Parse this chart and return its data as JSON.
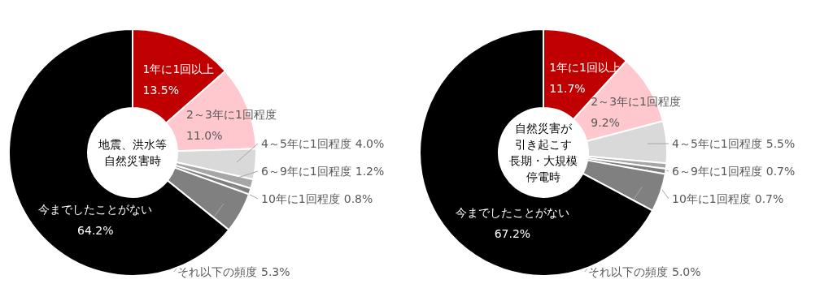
{
  "chart_data": [
    {
      "type": "donut",
      "annotations": [
        "地震、洪水等",
        "自然災害時"
      ],
      "categories": [
        "1年に1回以上",
        "2～3年に1回程度",
        "4～5年に1回程度",
        "6～9年に1回程度",
        "10年に1回程度",
        "それ以下の頻度",
        "今までしたことがない"
      ],
      "values": [
        13.5,
        11.0,
        4.0,
        1.2,
        0.8,
        5.3,
        64.2
      ],
      "colors": [
        "#c00000",
        "#ffc7ce",
        "#d9d9d9",
        "#a6a6a6",
        "#7f7f7f",
        "#808080",
        "#000000"
      ],
      "value_labels": [
        "13.5%",
        "11.0%",
        "4.0%",
        "1.2%",
        "0.8%",
        "5.3%",
        "64.2%"
      ]
    },
    {
      "type": "donut",
      "annotations": [
        "自然災害が",
        "引き起こす",
        "長期・大規模",
        "停電時"
      ],
      "categories": [
        "1年に1回以上",
        "2～3年に1回程度",
        "4～5年に1回程度",
        "6～9年に1回程度",
        "10年に1回程度",
        "それ以下の頻度",
        "今までしたことがない"
      ],
      "values": [
        11.7,
        9.2,
        5.5,
        0.7,
        0.7,
        5.0,
        67.2
      ],
      "colors": [
        "#c00000",
        "#ffc7ce",
        "#d9d9d9",
        "#a6a6a6",
        "#7f7f7f",
        "#808080",
        "#000000"
      ],
      "value_labels": [
        "11.7%",
        "9.2%",
        "5.5%",
        "0.7%",
        "0.7%",
        "5.0%",
        "67.2%"
      ]
    }
  ]
}
